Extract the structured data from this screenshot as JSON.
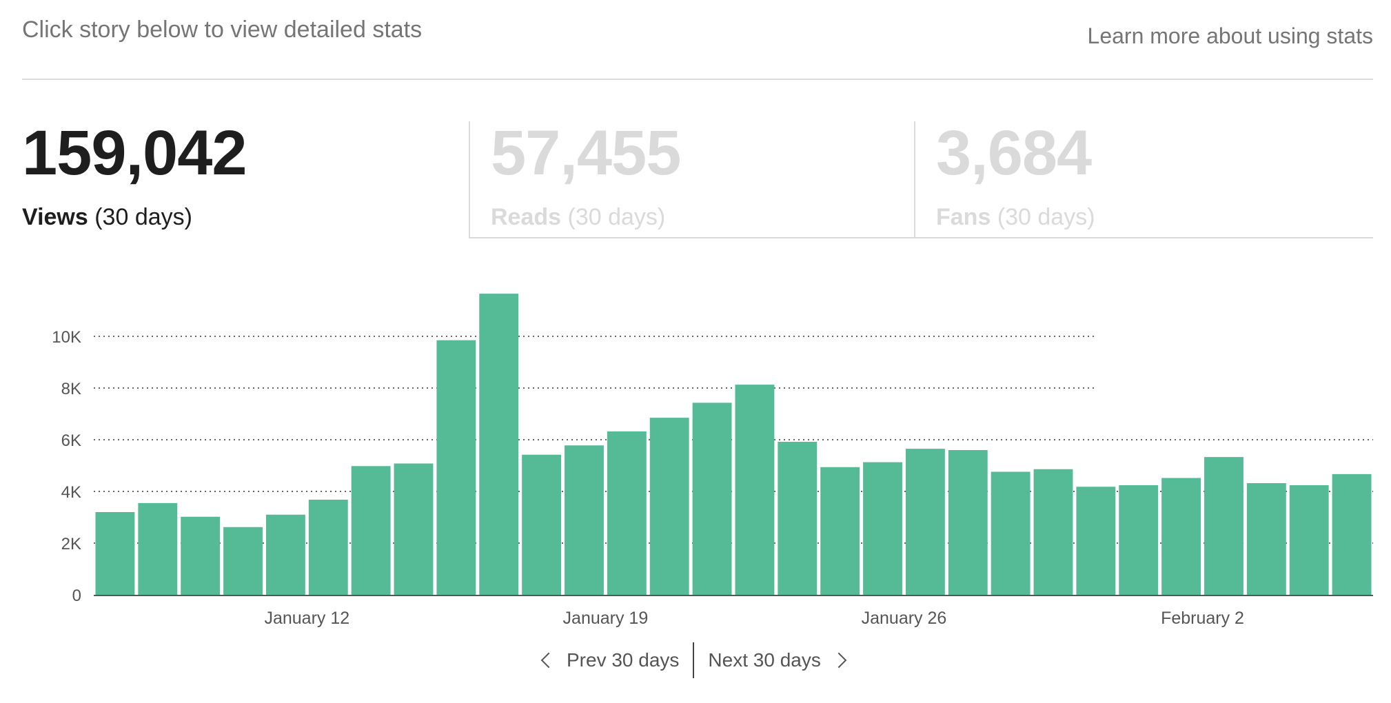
{
  "header": {
    "intro": "Click story below to view detailed stats",
    "learn_more": "Learn more about using stats"
  },
  "tabs": [
    {
      "number": "159,042",
      "label": "Views",
      "period": "(30 days)"
    },
    {
      "number": "57,455",
      "label": "Reads",
      "period": "(30 days)"
    },
    {
      "number": "3,684",
      "label": "Fans",
      "period": "(30 days)"
    }
  ],
  "pager": {
    "prev": "Prev 30 days",
    "next": "Next 30 days"
  },
  "colors": {
    "bar": "#55ba96",
    "axis": "#555555"
  },
  "chart_data": {
    "type": "bar",
    "title": "",
    "xlabel": "",
    "ylabel": "",
    "ylim": [
      0,
      12000
    ],
    "yticks": [
      0,
      2000,
      4000,
      6000,
      8000,
      10000
    ],
    "ytick_labels": [
      "0",
      "2K",
      "4K",
      "6K",
      "8K",
      "10K"
    ],
    "x_tick_labels": [
      {
        "index": 4.5,
        "label": "January 12"
      },
      {
        "index": 11.5,
        "label": "January 19"
      },
      {
        "index": 18.5,
        "label": "January 26"
      },
      {
        "index": 25.5,
        "label": "February 2"
      }
    ],
    "values": [
      3200,
      3550,
      3020,
      2620,
      3100,
      3680,
      4980,
      5080,
      9850,
      11650,
      5420,
      5780,
      6320,
      6850,
      7430,
      8130,
      5920,
      4940,
      5130,
      5650,
      5600,
      4760,
      4860,
      4180,
      4240,
      4520,
      5330,
      4320,
      4240,
      4670
    ],
    "grid": true
  }
}
